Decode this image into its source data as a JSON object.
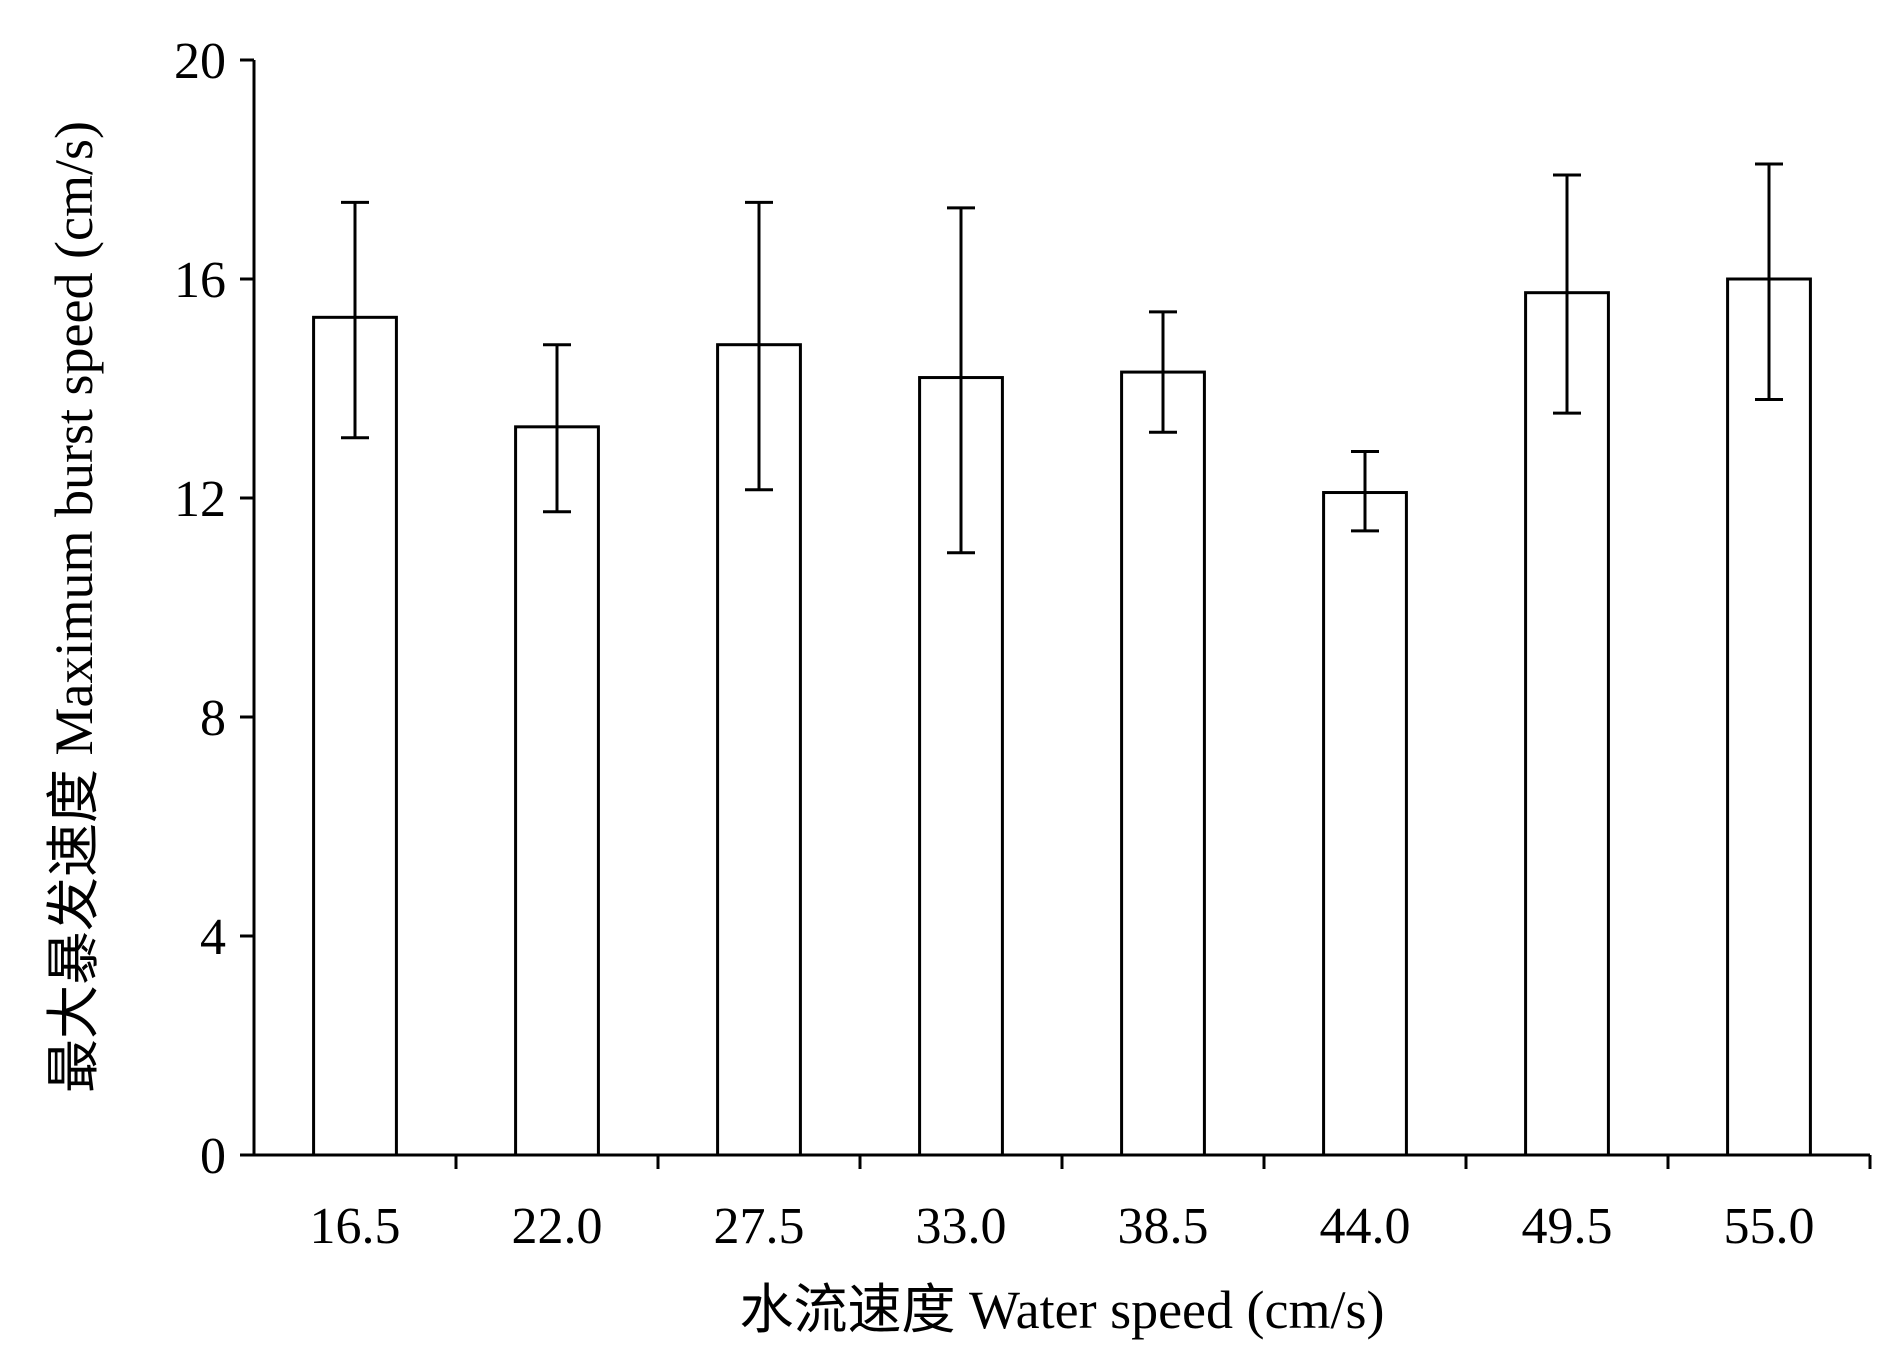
{
  "chart_data": {
    "type": "bar",
    "categories": [
      "16.5",
      "22.0",
      "27.5",
      "33.0",
      "38.5",
      "44.0",
      "49.5",
      "55.0"
    ],
    "values": [
      15.3,
      13.3,
      14.8,
      14.2,
      14.3,
      12.1,
      15.75,
      16.0
    ],
    "error_low": [
      13.1,
      11.75,
      12.15,
      11.0,
      13.2,
      11.4,
      13.55,
      13.8
    ],
    "error_high": [
      17.4,
      14.8,
      17.4,
      17.3,
      15.4,
      12.85,
      17.9,
      18.1
    ],
    "xlabel": "水流速度 Water speed (cm/s)",
    "ylabel": "最大暴发速度 Maximum burst speed (cm/s)",
    "ylim": [
      0,
      20
    ],
    "yticks": [
      "0",
      "4",
      "8",
      "12",
      "16",
      "20"
    ],
    "grid": false,
    "bar_fill": "#ffffff",
    "bar_stroke": "#000000"
  }
}
